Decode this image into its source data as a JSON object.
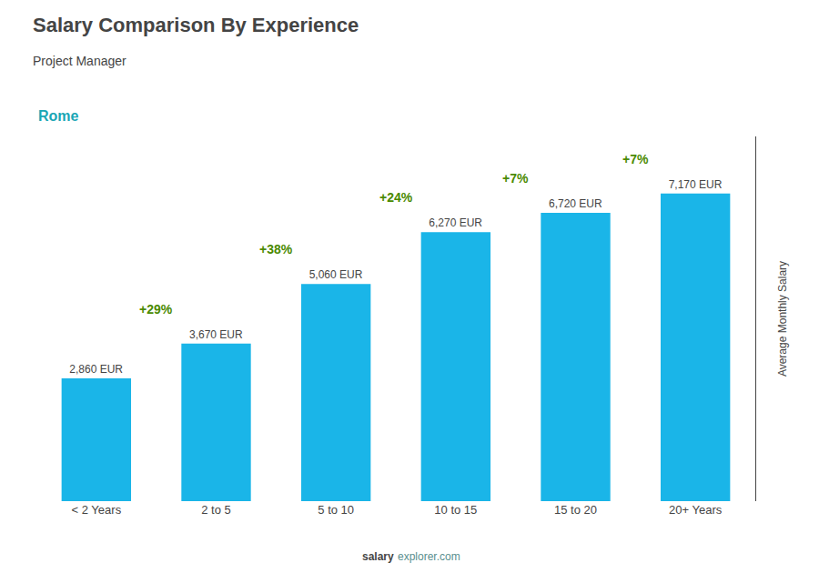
{
  "chart_data": {
    "type": "bar",
    "title": "Salary Comparison By Experience",
    "subtitle": "Project Manager",
    "annotations": [
      "Rome",
      "salary",
      "explorer.com"
    ],
    "ylabel": "Average Monthly Salary",
    "categories": [
      "< 2 Years",
      "2 to 5",
      "5 to 10",
      "10 to 15",
      "15 to 20",
      "20+ Years"
    ],
    "values": [
      2860,
      3670,
      5060,
      6270,
      6720,
      7170
    ],
    "value_labels": [
      "2,860 EUR",
      "3,670 EUR",
      "5,060 EUR",
      "6,270 EUR",
      "6,720 EUR",
      "7,170 EUR"
    ],
    "change_labels": [
      null,
      "+29%",
      "+38%",
      "+24%",
      "+7%",
      "+7%"
    ],
    "color": "#1ab5e8",
    "ylim": [
      0,
      8500
    ],
    "grid": false,
    "tick_labels": "x",
    "data_labels": true
  }
}
